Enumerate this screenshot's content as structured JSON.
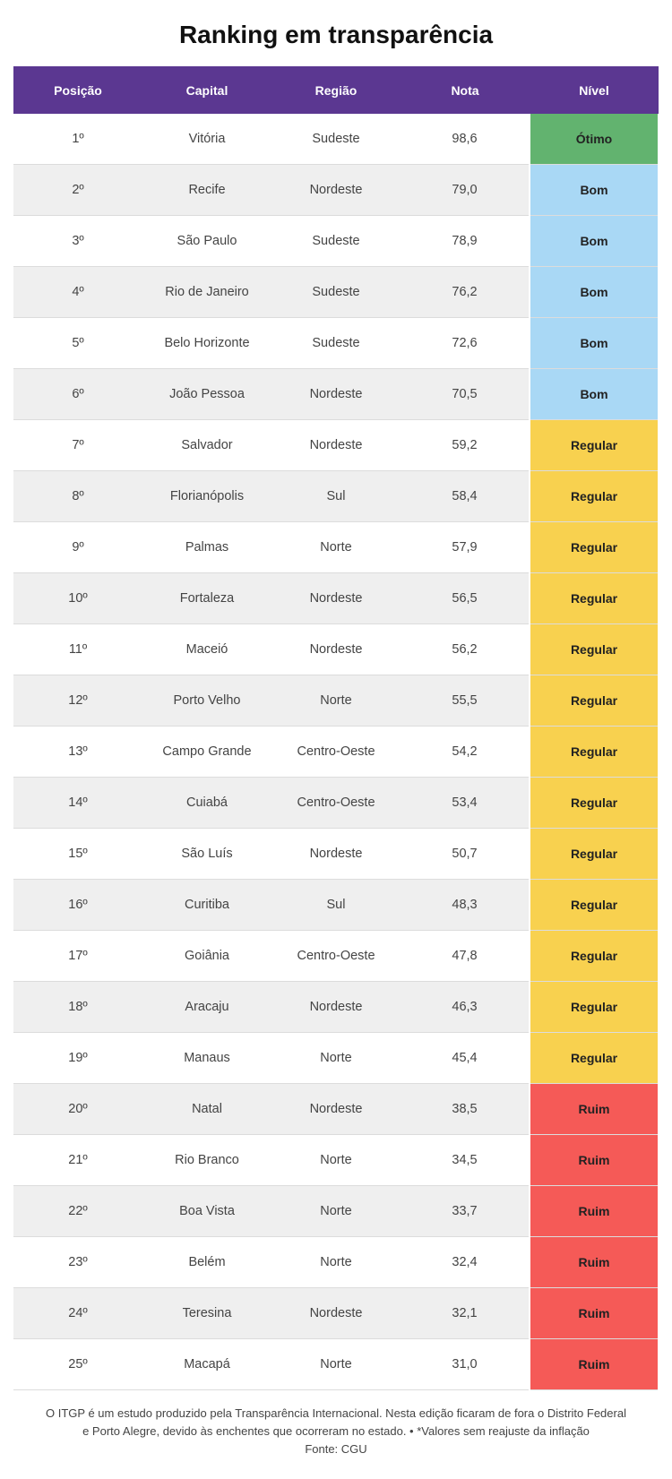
{
  "header": {
    "title": "Ranking em transparência"
  },
  "table": {
    "columns": [
      "Posição",
      "Capital",
      "Região",
      "Nota",
      "Nível"
    ],
    "rows": [
      {
        "cells": [
          "1º",
          "Vitória",
          "Sudeste",
          "98,6",
          "Ótimo"
        ],
        "color": "#62b36f"
      },
      {
        "cells": [
          "2º",
          "Recife",
          "Nordeste",
          "79,0",
          "Bom"
        ],
        "color": "#a9d8f5"
      },
      {
        "cells": [
          "3º",
          "São Paulo",
          "Sudeste",
          "78,9",
          "Bom"
        ],
        "color": "#a9d8f5"
      },
      {
        "cells": [
          "4º",
          "Rio de Janeiro",
          "Sudeste",
          "76,2",
          "Bom"
        ],
        "color": "#a9d8f5"
      },
      {
        "cells": [
          "5º",
          "Belo Horizonte",
          "Sudeste",
          "72,6",
          "Bom"
        ],
        "color": "#a9d8f5"
      },
      {
        "cells": [
          "6º",
          "João Pessoa",
          "Nordeste",
          "70,5",
          "Bom"
        ],
        "color": "#a9d8f5"
      },
      {
        "cells": [
          "7º",
          "Salvador",
          "Nordeste",
          "59,2",
          "Regular"
        ],
        "color": "#f8d14f"
      },
      {
        "cells": [
          "8º",
          "Florianópolis",
          "Sul",
          "58,4",
          "Regular"
        ],
        "color": "#f8d14f"
      },
      {
        "cells": [
          "9º",
          "Palmas",
          "Norte",
          "57,9",
          "Regular"
        ],
        "color": "#f8d14f"
      },
      {
        "cells": [
          "10º",
          "Fortaleza",
          "Nordeste",
          "56,5",
          "Regular"
        ],
        "color": "#f8d14f"
      },
      {
        "cells": [
          "11º",
          "Maceió",
          "Nordeste",
          "56,2",
          "Regular"
        ],
        "color": "#f8d14f"
      },
      {
        "cells": [
          "12º",
          "Porto Velho",
          "Norte",
          "55,5",
          "Regular"
        ],
        "color": "#f8d14f"
      },
      {
        "cells": [
          "13º",
          "Campo Grande",
          "Centro-Oeste",
          "54,2",
          "Regular"
        ],
        "color": "#f8d14f"
      },
      {
        "cells": [
          "14º",
          "Cuiabá",
          "Centro-Oeste",
          "53,4",
          "Regular"
        ],
        "color": "#f8d14f"
      },
      {
        "cells": [
          "15º",
          "São Luís",
          "Nordeste",
          "50,7",
          "Regular"
        ],
        "color": "#f8d14f"
      },
      {
        "cells": [
          "16º",
          "Curitiba",
          "Sul",
          "48,3",
          "Regular"
        ],
        "color": "#f8d14f"
      },
      {
        "cells": [
          "17º",
          "Goiânia",
          "Centro-Oeste",
          "47,8",
          "Regular"
        ],
        "color": "#f8d14f"
      },
      {
        "cells": [
          "18º",
          "Aracaju",
          "Nordeste",
          "46,3",
          "Regular"
        ],
        "color": "#f8d14f"
      },
      {
        "cells": [
          "19º",
          "Manaus",
          "Norte",
          "45,4",
          "Regular"
        ],
        "color": "#f8d14f"
      },
      {
        "cells": [
          "20º",
          "Natal",
          "Nordeste",
          "38,5",
          "Ruim"
        ],
        "color": "#f55a57"
      },
      {
        "cells": [
          "21º",
          "Rio Branco",
          "Norte",
          "34,5",
          "Ruim"
        ],
        "color": "#f55a57"
      },
      {
        "cells": [
          "22º",
          "Boa Vista",
          "Norte",
          "33,7",
          "Ruim"
        ],
        "color": "#f55a57"
      },
      {
        "cells": [
          "23º",
          "Belém",
          "Norte",
          "32,4",
          "Ruim"
        ],
        "color": "#f55a57"
      },
      {
        "cells": [
          "24º",
          "Teresina",
          "Nordeste",
          "32,1",
          "Ruim"
        ],
        "color": "#f55a57"
      },
      {
        "cells": [
          "25º",
          "Macapá",
          "Norte",
          "31,0",
          "Ruim"
        ],
        "color": "#f55a57"
      }
    ]
  },
  "footer": {
    "lines": [
      "O ITGP é um estudo produzido pela Transparência Internacional. Nesta edição ficaram de fora o Distrito Federal",
      "e Porto Alegre, devido às enchentes que ocorreram no estado. • *Valores sem reajuste da inflação",
      "Fonte: CGU"
    ]
  }
}
